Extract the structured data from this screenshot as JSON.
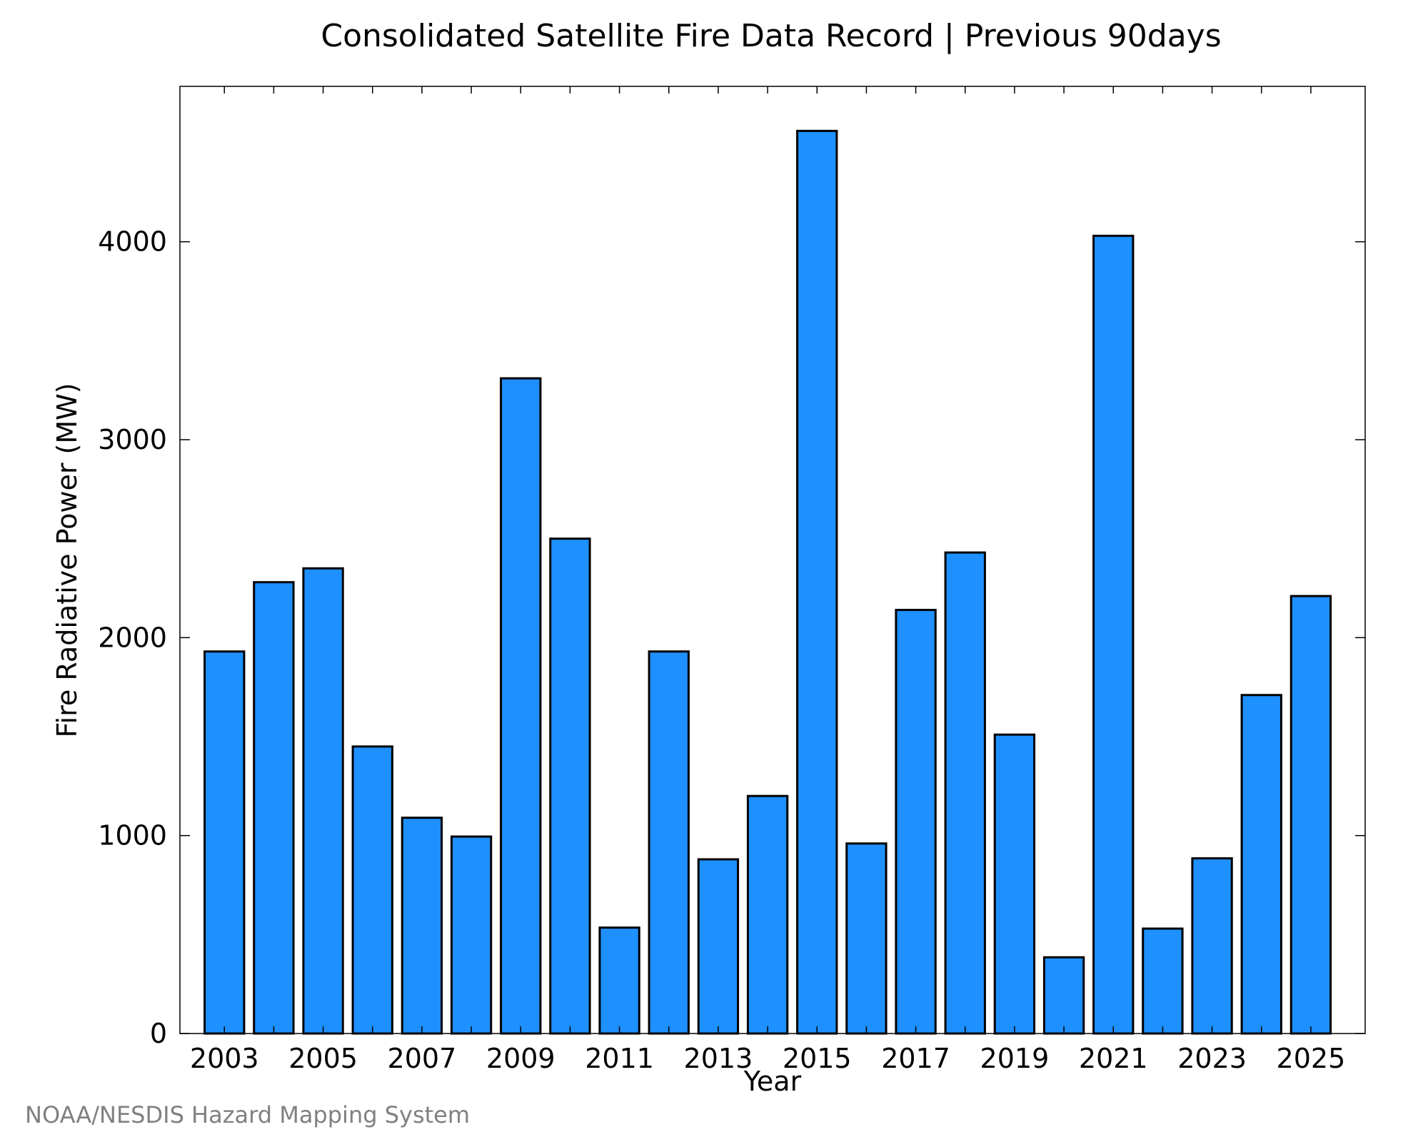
{
  "chart_data": {
    "type": "bar",
    "title": "Consolidated Satellite Fire Data Record | Previous 90days",
    "xlabel": "Year",
    "ylabel": "Fire Radiative Power (MW)",
    "categories": [
      2003,
      2004,
      2005,
      2006,
      2007,
      2008,
      2009,
      2010,
      2011,
      2012,
      2013,
      2014,
      2015,
      2016,
      2017,
      2018,
      2019,
      2020,
      2021,
      2022,
      2023,
      2024,
      2025
    ],
    "values": [
      1930,
      2280,
      2350,
      1450,
      1090,
      995,
      3310,
      2500,
      535,
      1930,
      880,
      1200,
      4560,
      960,
      2140,
      2430,
      1510,
      385,
      4030,
      530,
      885,
      1710,
      2210
    ],
    "x_tick_labels": [
      "2003",
      "2005",
      "2007",
      "2009",
      "2011",
      "2013",
      "2015",
      "2017",
      "2019",
      "2021",
      "2023",
      "2025"
    ],
    "y_ticks": [
      0,
      1000,
      2000,
      3000,
      4000
    ],
    "ylim": [
      0,
      4785
    ],
    "xlim": [
      2002.1,
      2026.1
    ],
    "bar_width": 0.8,
    "colors": {
      "bar_fill": "#1e90ff",
      "bar_stroke": "#000000"
    },
    "grid": false,
    "legend": "none",
    "credit": "NOAA/NESDIS Hazard Mapping System"
  }
}
